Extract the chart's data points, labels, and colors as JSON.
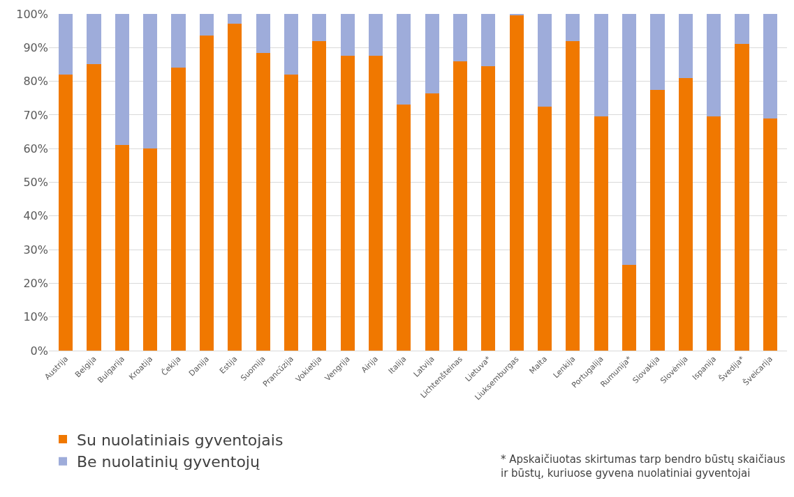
{
  "chart_data": {
    "type": "bar",
    "stacked": true,
    "categories": [
      "Austrija",
      "Belgija",
      "Bulgarija",
      "Kroatija",
      "Čekija",
      "Danija",
      "Estija",
      "Suomija",
      "Prancūzija",
      "Vokietija",
      "Vengrija",
      "Airija",
      "Italija",
      "Latvija",
      "Lichtenšteinas",
      "Lietuva*",
      "Liuksemburgas",
      "Malta",
      "Lenkija",
      "Portugalija",
      "Rumunija*",
      "Slovakija",
      "Slovėnija",
      "Ispanija",
      "Švedija*",
      "Šveicarija"
    ],
    "series": [
      {
        "name": "Su nuolatiniais gyventojais",
        "color": "#f07800",
        "values": [
          82,
          85,
          61,
          60,
          84,
          93.5,
          97,
          88.5,
          82,
          92,
          87.5,
          87.5,
          73,
          76.5,
          86,
          84.5,
          99.5,
          72.5,
          92,
          69.5,
          25.5,
          77.5,
          81,
          69.5,
          91,
          69
        ]
      },
      {
        "name": "Be nuolatinių gyventojų",
        "color": "#9eacda",
        "values": [
          18,
          15,
          39,
          40,
          16,
          6.5,
          3,
          11.5,
          18,
          8,
          12.5,
          12.5,
          27,
          23.5,
          14,
          15.5,
          0.5,
          27.5,
          8,
          30.5,
          74.5,
          22.5,
          19,
          30.5,
          9,
          31
        ]
      }
    ],
    "ylim": [
      0,
      100
    ],
    "yticks": [
      {
        "value": 0,
        "label": "0%"
      },
      {
        "value": 10,
        "label": "10%"
      },
      {
        "value": 20,
        "label": "20%"
      },
      {
        "value": 30,
        "label": "30%"
      },
      {
        "value": 40,
        "label": "40%"
      },
      {
        "value": 50,
        "label": "50%"
      },
      {
        "value": 60,
        "label": "60%"
      },
      {
        "value": 70,
        "label": "70%"
      },
      {
        "value": 80,
        "label": "80%"
      },
      {
        "value": 90,
        "label": "90%"
      },
      {
        "value": 100,
        "label": "100%"
      }
    ],
    "grid": "y",
    "legend": "bottom left",
    "annotations": [
      "* Apskaičiuotas skirtumas tarp bendro būstų skaičiaus\nir būstų, kuriuose gyvena nuolatiniai gyventojai"
    ]
  }
}
